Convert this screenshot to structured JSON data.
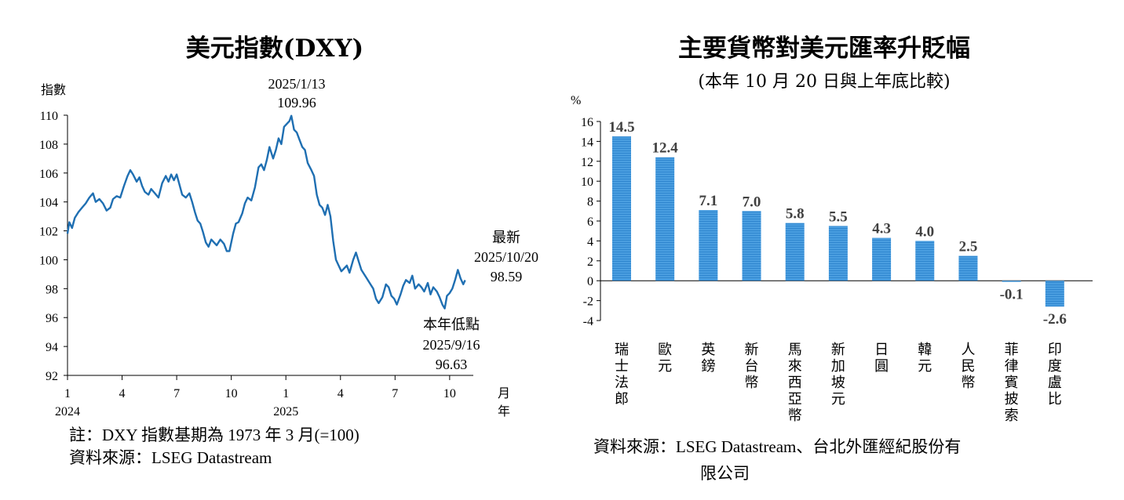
{
  "left": {
    "title": "美元指數(DXY)",
    "note": "註：DXY 指數基期為 1973 年 3 月(=100)",
    "source": "資料來源：LSEG Datastream"
  },
  "right": {
    "title": "主要貨幣對美元匯率升貶幅",
    "subtitle": "(本年 10 月 20 日與上年底比較)",
    "source_line1": "資料來源：LSEG Datastream、台北外匯經紀股份有",
    "source_line2": "限公司"
  },
  "colors": {
    "line": "#1f6fb2",
    "bar": "#4a9ee0",
    "bar_stripe": "#2f86cf"
  },
  "chart_data": [
    {
      "type": "line",
      "title": "美元指數(DXY)",
      "ylabel": "指數",
      "xlabel_month": "月",
      "xlabel_year": "年",
      "ylim": [
        92,
        110
      ],
      "yticks": [
        92,
        94,
        96,
        98,
        100,
        102,
        104,
        106,
        108,
        110
      ],
      "xticks": [
        {
          "month": 1,
          "label": "1",
          "year": "2024"
        },
        {
          "month": 4,
          "label": "4"
        },
        {
          "month": 7,
          "label": "7"
        },
        {
          "month": 10,
          "label": "10"
        },
        {
          "month": 13,
          "label": "1",
          "year": "2025"
        },
        {
          "month": 16,
          "label": "4"
        },
        {
          "month": 19,
          "label": "7"
        },
        {
          "month": 22,
          "label": "10"
        }
      ],
      "series": [
        {
          "points": [
            [
              1.0,
              101.8
            ],
            [
              1.1,
              102.6
            ],
            [
              1.25,
              102.2
            ],
            [
              1.4,
              102.9
            ],
            [
              1.6,
              103.3
            ],
            [
              1.8,
              103.6
            ],
            [
              2.0,
              103.9
            ],
            [
              2.2,
              104.3
            ],
            [
              2.4,
              104.6
            ],
            [
              2.55,
              104.0
            ],
            [
              2.75,
              104.2
            ],
            [
              2.95,
              103.9
            ],
            [
              3.15,
              103.4
            ],
            [
              3.35,
              103.6
            ],
            [
              3.5,
              104.2
            ],
            [
              3.7,
              104.4
            ],
            [
              3.9,
              104.3
            ],
            [
              4.1,
              105.1
            ],
            [
              4.3,
              105.8
            ],
            [
              4.45,
              106.2
            ],
            [
              4.6,
              105.9
            ],
            [
              4.8,
              105.4
            ],
            [
              4.95,
              105.7
            ],
            [
              5.1,
              105.1
            ],
            [
              5.25,
              104.7
            ],
            [
              5.45,
              104.5
            ],
            [
              5.6,
              104.9
            ],
            [
              5.8,
              104.6
            ],
            [
              6.0,
              104.3
            ],
            [
              6.2,
              105.3
            ],
            [
              6.4,
              105.8
            ],
            [
              6.55,
              105.4
            ],
            [
              6.7,
              105.9
            ],
            [
              6.85,
              105.5
            ],
            [
              7.0,
              105.9
            ],
            [
              7.15,
              105.2
            ],
            [
              7.3,
              104.5
            ],
            [
              7.5,
              104.3
            ],
            [
              7.7,
              104.6
            ],
            [
              7.85,
              104.0
            ],
            [
              8.0,
              103.3
            ],
            [
              8.15,
              102.7
            ],
            [
              8.3,
              102.5
            ],
            [
              8.45,
              101.9
            ],
            [
              8.6,
              101.2
            ],
            [
              8.75,
              100.9
            ],
            [
              8.9,
              101.4
            ],
            [
              9.05,
              101.2
            ],
            [
              9.2,
              101.0
            ],
            [
              9.4,
              101.4
            ],
            [
              9.6,
              101.1
            ],
            [
              9.75,
              100.6
            ],
            [
              9.9,
              100.6
            ],
            [
              10.1,
              101.8
            ],
            [
              10.25,
              102.5
            ],
            [
              10.4,
              102.6
            ],
            [
              10.6,
              103.2
            ],
            [
              10.75,
              103.9
            ],
            [
              10.9,
              104.3
            ],
            [
              11.1,
              104.1
            ],
            [
              11.3,
              105.0
            ],
            [
              11.5,
              106.4
            ],
            [
              11.65,
              106.6
            ],
            [
              11.8,
              106.2
            ],
            [
              11.95,
              106.9
            ],
            [
              12.1,
              107.8
            ],
            [
              12.3,
              107.0
            ],
            [
              12.45,
              107.6
            ],
            [
              12.6,
              108.4
            ],
            [
              12.75,
              108.0
            ],
            [
              12.9,
              109.2
            ],
            [
              13.05,
              109.4
            ],
            [
              13.2,
              109.6
            ],
            [
              13.3,
              109.96
            ],
            [
              13.45,
              109.0
            ],
            [
              13.6,
              108.8
            ],
            [
              13.75,
              108.3
            ],
            [
              13.9,
              107.8
            ],
            [
              14.05,
              107.6
            ],
            [
              14.2,
              106.7
            ],
            [
              14.4,
              106.2
            ],
            [
              14.55,
              105.8
            ],
            [
              14.7,
              104.5
            ],
            [
              14.85,
              103.8
            ],
            [
              15.0,
              103.6
            ],
            [
              15.15,
              103.1
            ],
            [
              15.3,
              103.8
            ],
            [
              15.45,
              103.0
            ],
            [
              15.6,
              101.3
            ],
            [
              15.75,
              100.0
            ],
            [
              15.9,
              99.6
            ],
            [
              16.05,
              99.2
            ],
            [
              16.2,
              99.4
            ],
            [
              16.35,
              99.6
            ],
            [
              16.5,
              99.1
            ],
            [
              16.7,
              100.0
            ],
            [
              16.85,
              100.5
            ],
            [
              17.0,
              99.9
            ],
            [
              17.15,
              99.3
            ],
            [
              17.3,
              99.0
            ],
            [
              17.45,
              98.7
            ],
            [
              17.6,
              98.4
            ],
            [
              17.8,
              98.0
            ],
            [
              17.95,
              97.3
            ],
            [
              18.1,
              97.0
            ],
            [
              18.3,
              97.4
            ],
            [
              18.5,
              98.3
            ],
            [
              18.65,
              98.1
            ],
            [
              18.8,
              97.5
            ],
            [
              18.95,
              97.3
            ],
            [
              19.1,
              96.9
            ],
            [
              19.3,
              97.6
            ],
            [
              19.45,
              98.2
            ],
            [
              19.6,
              98.6
            ],
            [
              19.8,
              98.4
            ],
            [
              19.95,
              98.9
            ],
            [
              20.1,
              98.0
            ],
            [
              20.3,
              98.3
            ],
            [
              20.45,
              98.1
            ],
            [
              20.6,
              97.8
            ],
            [
              20.8,
              98.4
            ],
            [
              20.95,
              97.6
            ],
            [
              21.1,
              98.1
            ],
            [
              21.3,
              97.8
            ],
            [
              21.45,
              97.4
            ],
            [
              21.6,
              96.9
            ],
            [
              21.73,
              96.63
            ],
            [
              21.85,
              97.5
            ],
            [
              22.0,
              97.7
            ],
            [
              22.15,
              98.0
            ],
            [
              22.3,
              98.6
            ],
            [
              22.45,
              99.3
            ],
            [
              22.6,
              98.7
            ],
            [
              22.75,
              98.3
            ],
            [
              22.85,
              98.59
            ]
          ]
        }
      ],
      "annotations": [
        {
          "name": "peak",
          "month": 13.3,
          "value": 109.96,
          "lines": [
            "2025/1/13",
            "109.96"
          ]
        },
        {
          "name": "latest",
          "month": 22.85,
          "value": 98.59,
          "lines": [
            "最新",
            "2025/10/20",
            "98.59"
          ]
        },
        {
          "name": "year-low",
          "month": 21.73,
          "value": 96.63,
          "lines": [
            "本年低點",
            "2025/9/16",
            "96.63"
          ]
        }
      ]
    },
    {
      "type": "bar",
      "title": "主要貨幣對美元匯率升貶幅",
      "ylabel": "%",
      "ylim": [
        -4,
        16
      ],
      "yticks": [
        -4,
        -2,
        0,
        2,
        4,
        6,
        8,
        10,
        12,
        14,
        16
      ],
      "categories": [
        "瑞士法郎",
        "歐元",
        "英鎊",
        "新台幣",
        "馬來西亞幣",
        "新加坡元",
        "日圓",
        "韓元",
        "人民幣",
        "菲律賓披索",
        "印度盧比"
      ],
      "values": [
        14.5,
        12.4,
        7.1,
        7.0,
        5.8,
        5.5,
        4.3,
        4.0,
        2.5,
        -0.1,
        -2.6
      ],
      "data_labels": [
        "14.5",
        "12.4",
        "7.1",
        "7.0",
        "5.8",
        "5.5",
        "4.3",
        "4.0",
        "2.5",
        "-0.1",
        "-2.6"
      ]
    }
  ]
}
